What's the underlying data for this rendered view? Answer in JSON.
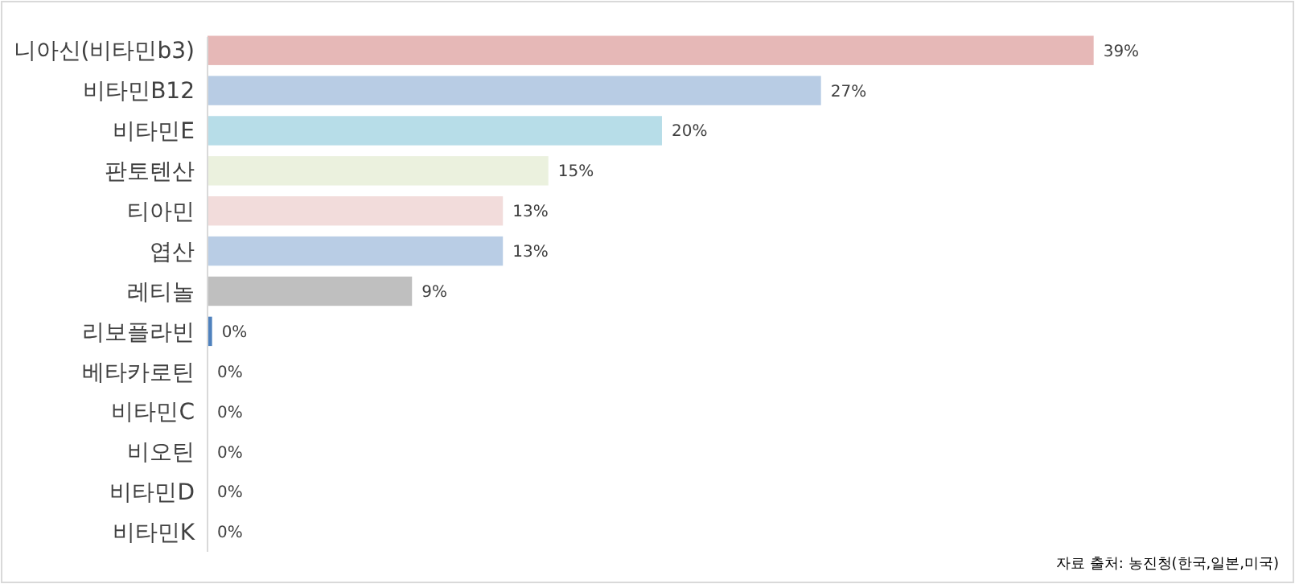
{
  "chart_data": {
    "type": "bar",
    "orientation": "horizontal",
    "categories": [
      "니아신(비타민b3)",
      "비타민B12",
      "비타민E",
      "판토텐산",
      "티아민",
      "엽산",
      "레티놀",
      "리보플라빈",
      "베타카로틴",
      "비타민C",
      "비오틴",
      "비타민D",
      "비타민K"
    ],
    "values": [
      39,
      27,
      20,
      15,
      13,
      13,
      9,
      0.2,
      0,
      0,
      0,
      0,
      0
    ],
    "colors": [
      "#e6b8b7",
      "#b8cce4",
      "#b7dde8",
      "#ebf1de",
      "#f2dcdb",
      "#b9cde5",
      "#bfbfbf",
      "#4f81bd",
      "#b8cce4",
      "#b8cce4",
      "#b8cce4",
      "#b8cce4",
      "#b8cce4"
    ],
    "value_labels": [
      "39%",
      "27%",
      "20%",
      "15%",
      "13%",
      "13%",
      "9%",
      "0%",
      "0%",
      "0%",
      "0%",
      "0%",
      "0%"
    ],
    "annotations": [
      "자료 출처: 농진청(한국,일본,미국)"
    ]
  }
}
